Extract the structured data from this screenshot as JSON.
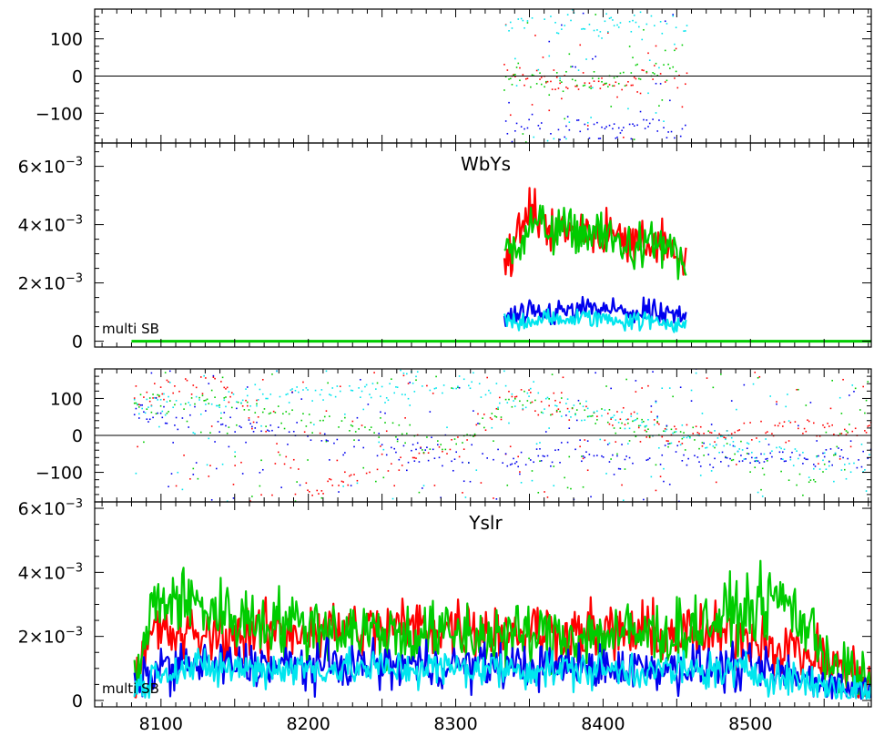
{
  "chart_data": [
    {
      "type": "scatter",
      "panel": "phase",
      "title": "",
      "xlim": [
        8055,
        8582
      ],
      "ylim": [
        -180,
        180
      ],
      "yticks": [
        {
          "v": 100,
          "label": "100"
        },
        {
          "v": 0,
          "label": "0"
        },
        {
          "v": -100,
          "label": "−100"
        }
      ],
      "xtick_labels_shown": false,
      "zero_line": true,
      "x_range": [
        8333,
        8457
      ],
      "series": [
        {
          "color": "#ff0000",
          "trend": [
            [
              8333,
              5
            ],
            [
              8400,
              -30
            ],
            [
              8457,
              10
            ]
          ]
        },
        {
          "color": "#00cc00",
          "trend": [
            [
              8333,
              -5
            ],
            [
              8400,
              -20
            ],
            [
              8457,
              55
            ]
          ]
        },
        {
          "color": "#0000ee",
          "trend": [
            [
              8333,
              -140
            ],
            [
              8457,
              -140
            ]
          ]
        },
        {
          "color": "#00e5ee",
          "trend": [
            [
              8333,
              140
            ],
            [
              8457,
              140
            ]
          ]
        }
      ]
    },
    {
      "type": "line",
      "panel": "amplitude",
      "title": "WbYs",
      "annotation": "multi SB",
      "xlim": [
        8055,
        8582
      ],
      "ylim": [
        -0.0002,
        0.0068
      ],
      "yticks": [
        {
          "v": 0,
          "label": "0",
          "exp": ""
        },
        {
          "v": 0.002,
          "label": "2×10",
          "exp": "−3"
        },
        {
          "v": 0.004,
          "label": "4×10",
          "exp": "−3"
        },
        {
          "v": 0.006,
          "label": "6×10",
          "exp": "−3"
        }
      ],
      "xtick_labels_shown": false,
      "x_range": [
        8333,
        8457
      ],
      "baseline": {
        "color": "#00cc00",
        "x": [
          8080,
          8582
        ],
        "value": 0
      },
      "series": [
        {
          "color": "#ff0000",
          "profile": [
            [
              8333,
              0.0027
            ],
            [
              8352,
              0.0045
            ],
            [
              8370,
              0.0037
            ],
            [
              8395,
              0.0038
            ],
            [
              8420,
              0.0033
            ],
            [
              8445,
              0.0034
            ],
            [
              8457,
              0.0024
            ]
          ],
          "noise": 0.0007
        },
        {
          "color": "#00cc00",
          "profile": [
            [
              8333,
              0.003
            ],
            [
              8352,
              0.004
            ],
            [
              8370,
              0.0038
            ],
            [
              8395,
              0.0037
            ],
            [
              8420,
              0.0032
            ],
            [
              8445,
              0.0033
            ],
            [
              8457,
              0.0022
            ]
          ],
          "noise": 0.0007
        },
        {
          "color": "#0000ee",
          "profile": [
            [
              8333,
              0.0008
            ],
            [
              8395,
              0.0011
            ],
            [
              8457,
              0.0008
            ]
          ],
          "noise": 0.0004
        },
        {
          "color": "#00e5ee",
          "profile": [
            [
              8333,
              0.0007
            ],
            [
              8395,
              0.0008
            ],
            [
              8457,
              0.0006
            ]
          ],
          "noise": 0.0003
        }
      ]
    },
    {
      "type": "scatter",
      "panel": "phase",
      "title": "",
      "xlim": [
        8055,
        8582
      ],
      "ylim": [
        -180,
        180
      ],
      "yticks": [
        {
          "v": 100,
          "label": "100"
        },
        {
          "v": 0,
          "label": "0"
        },
        {
          "v": -100,
          "label": "−100"
        }
      ],
      "xtick_labels_shown": false,
      "zero_line": true,
      "x_range": [
        8082,
        8582
      ],
      "series": [
        {
          "color": "#ff0000",
          "trend": [
            [
              8082,
              100
            ],
            [
              8140,
              150
            ],
            [
              8200,
              -150
            ],
            [
              8300,
              -30
            ],
            [
              8340,
              100
            ],
            [
              8450,
              10
            ],
            [
              8582,
              20
            ]
          ]
        },
        {
          "color": "#00cc00",
          "trend": [
            [
              8082,
              90
            ],
            [
              8140,
              90
            ],
            [
              8230,
              20
            ],
            [
              8300,
              -30
            ],
            [
              8340,
              100
            ],
            [
              8450,
              0
            ],
            [
              8540,
              -140
            ],
            [
              8582,
              120
            ]
          ]
        },
        {
          "color": "#0000ee",
          "trend": [
            [
              8082,
              60
            ],
            [
              8300,
              -60
            ],
            [
              8582,
              -60
            ]
          ]
        },
        {
          "color": "#00e5ee",
          "trend": [
            [
              8082,
              80
            ],
            [
              8300,
              140
            ],
            [
              8582,
              -100
            ]
          ]
        }
      ]
    },
    {
      "type": "line",
      "panel": "amplitude",
      "title": "Yslr",
      "annotation": "multi SB",
      "xlim": [
        8055,
        8582
      ],
      "ylim": [
        -0.0002,
        0.0062
      ],
      "yticks": [
        {
          "v": 0,
          "label": "0",
          "exp": ""
        },
        {
          "v": 0.002,
          "label": "2×10",
          "exp": "−3"
        },
        {
          "v": 0.004,
          "label": "4×10",
          "exp": "−3"
        },
        {
          "v": 0.006,
          "label": "6×10",
          "exp": "−3"
        }
      ],
      "xticks": [
        {
          "v": 8100,
          "label": "8100"
        },
        {
          "v": 8200,
          "label": "8200"
        },
        {
          "v": 8300,
          "label": "8300"
        },
        {
          "v": 8400,
          "label": "8400"
        },
        {
          "v": 8500,
          "label": "8500"
        }
      ],
      "x_range": [
        8082,
        8582
      ],
      "series": [
        {
          "color": "#ff0000",
          "profile": [
            [
              8082,
              0.0003
            ],
            [
              8095,
              0.0022
            ],
            [
              8120,
              0.002
            ],
            [
              8200,
              0.0022
            ],
            [
              8300,
              0.0023
            ],
            [
              8400,
              0.0021
            ],
            [
              8500,
              0.002
            ],
            [
              8560,
              0.0011
            ],
            [
              8582,
              0.0004
            ]
          ],
          "noise": 0.0008
        },
        {
          "color": "#00cc00",
          "profile": [
            [
              8082,
              0.0004
            ],
            [
              8095,
              0.003
            ],
            [
              8110,
              0.0032
            ],
            [
              8150,
              0.0026
            ],
            [
              8250,
              0.0021
            ],
            [
              8350,
              0.002
            ],
            [
              8450,
              0.0021
            ],
            [
              8522,
              0.0032
            ],
            [
              8560,
              0.001
            ],
            [
              8582,
              0.0004
            ]
          ],
          "noise": 0.0009
        },
        {
          "color": "#0000ee",
          "profile": [
            [
              8082,
              0.0003
            ],
            [
              8100,
              0.0011
            ],
            [
              8300,
              0.0011
            ],
            [
              8500,
              0.001
            ],
            [
              8582,
              0.0003
            ]
          ],
          "noise": 0.0006
        },
        {
          "color": "#00e5ee",
          "profile": [
            [
              8082,
              0.0002
            ],
            [
              8100,
              0.001
            ],
            [
              8300,
              0.001
            ],
            [
              8500,
              0.0009
            ],
            [
              8582,
              0.0002
            ]
          ],
          "noise": 0.0005
        }
      ]
    }
  ]
}
